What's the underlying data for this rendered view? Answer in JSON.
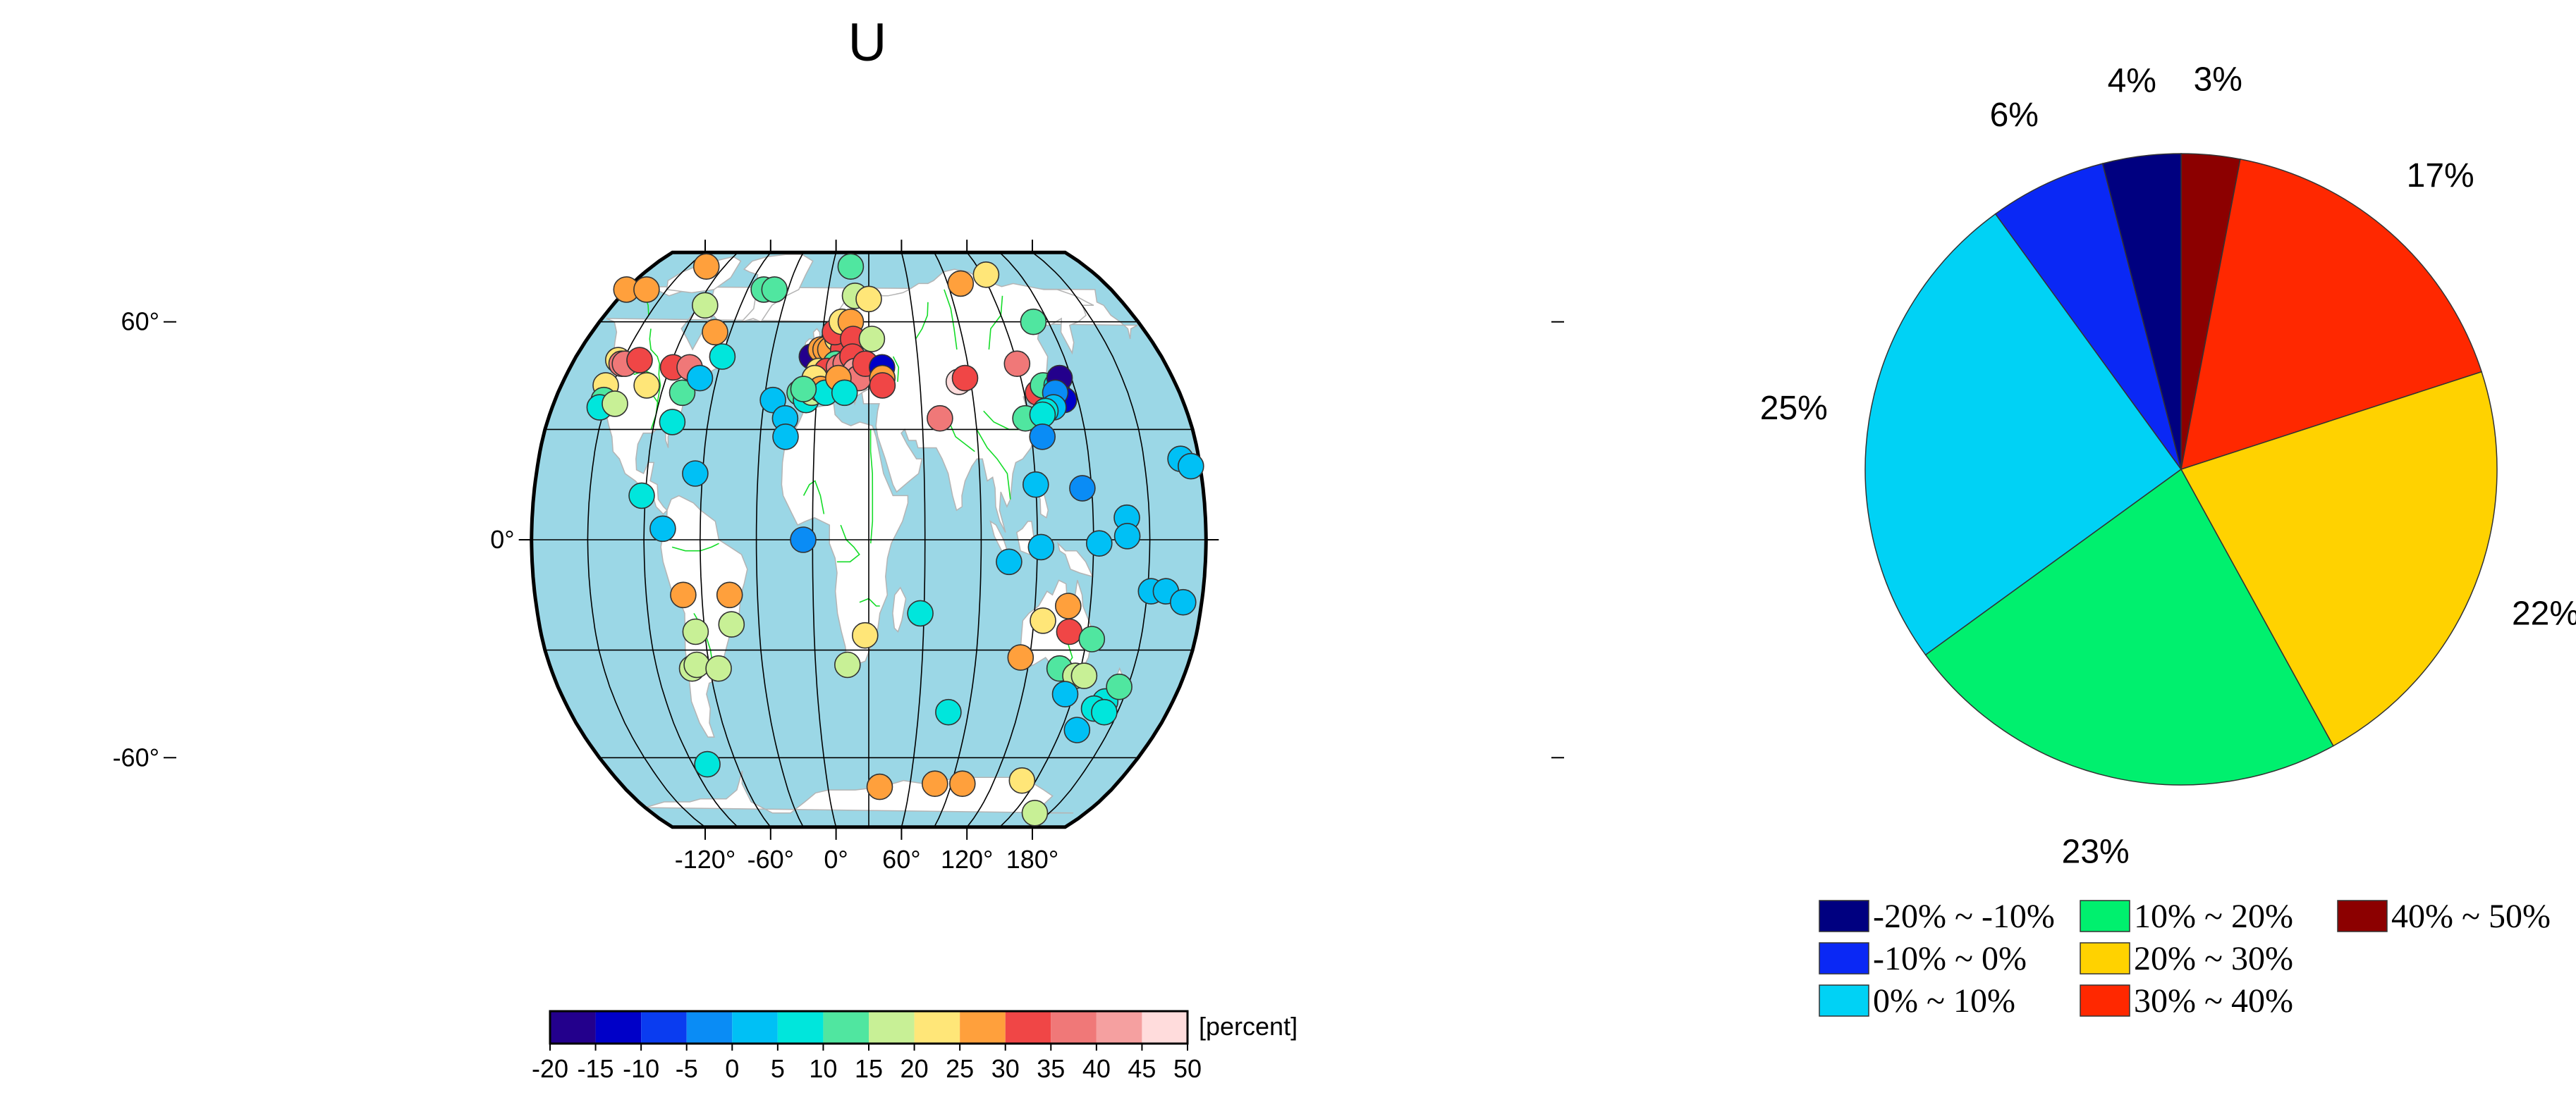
{
  "chart_data": [
    {
      "type": "map",
      "title": "U",
      "projection": "Robinson",
      "xticks": [
        "-120°",
        "-60°",
        "0°",
        "60°",
        "120°",
        "180°"
      ],
      "yticks": [
        "60°",
        "0°",
        "-60°"
      ],
      "colorbar": {
        "unit": "[percent]",
        "ticks": [
          "-20",
          "-15",
          "-10",
          "-5",
          "0",
          "5",
          "10",
          "15",
          "20",
          "25",
          "30",
          "35",
          "40",
          "45",
          "50"
        ],
        "bins": [
          {
            "from": -20,
            "to": -15,
            "color": "#23008c"
          },
          {
            "from": -15,
            "to": -10,
            "color": "#0000c8"
          },
          {
            "from": -10,
            "to": -5,
            "color": "#0a3cf0"
          },
          {
            "from": -5,
            "to": 0,
            "color": "#0a8cf5"
          },
          {
            "from": 0,
            "to": 5,
            "color": "#00c0f5"
          },
          {
            "from": 5,
            "to": 10,
            "color": "#00e6dc"
          },
          {
            "from": 10,
            "to": 15,
            "color": "#50e6a0"
          },
          {
            "from": 15,
            "to": 20,
            "color": "#c8f096"
          },
          {
            "from": 20,
            "to": 25,
            "color": "#ffe678"
          },
          {
            "from": 25,
            "to": 30,
            "color": "#ffa03c"
          },
          {
            "from": 30,
            "to": 35,
            "color": "#f04646"
          },
          {
            "from": 35,
            "to": 40,
            "color": "#f07878"
          },
          {
            "from": 40,
            "to": 45,
            "color": "#f5a0a0"
          },
          {
            "from": 45,
            "to": 50,
            "color": "#ffdcdc"
          }
        ]
      },
      "stations": [
        {
          "lon": -123,
          "lat": 49,
          "v": 22
        },
        {
          "lon": -120,
          "lat": 48,
          "v": 38
        },
        {
          "lon": -118,
          "lat": 48,
          "v": 35
        },
        {
          "lon": -110,
          "lat": 49,
          "v": 32
        },
        {
          "lon": -124,
          "lat": 42,
          "v": 22
        },
        {
          "lon": -122,
          "lat": 38,
          "v": 12
        },
        {
          "lon": -123,
          "lat": 36,
          "v": 5
        },
        {
          "lon": -115,
          "lat": 37,
          "v": 18
        },
        {
          "lon": -100,
          "lat": 42,
          "v": 22
        },
        {
          "lon": -88,
          "lat": 47,
          "v": 32
        },
        {
          "lon": -78,
          "lat": 47,
          "v": 38
        },
        {
          "lon": -78,
          "lat": 40,
          "v": 12
        },
        {
          "lon": -70,
          "lat": 44,
          "v": 0
        },
        {
          "lon": -60,
          "lat": 50,
          "v": 5
        },
        {
          "lon": -80,
          "lat": 32,
          "v": 5
        },
        {
          "lon": -64,
          "lat": 18,
          "v": 0
        },
        {
          "lon": -92,
          "lat": 12,
          "v": 8
        },
        {
          "lon": -80,
          "lat": 3,
          "v": 2
        },
        {
          "lon": -150,
          "lat": 70,
          "v": 25
        },
        {
          "lon": -135,
          "lat": 70,
          "v": 28
        },
        {
          "lon": -105,
          "lat": 78,
          "v": 27
        },
        {
          "lon": -85,
          "lat": 65,
          "v": 18
        },
        {
          "lon": -70,
          "lat": 57,
          "v": 28
        },
        {
          "lon": -48,
          "lat": 70,
          "v": 12
        },
        {
          "lon": -40,
          "lat": 70,
          "v": 10
        },
        {
          "lon": -25,
          "lat": 38,
          "v": 0
        },
        {
          "lon": -17,
          "lat": 33,
          "v": 0
        },
        {
          "lon": -16,
          "lat": 28,
          "v": 3
        },
        {
          "lon": -5,
          "lat": 0,
          "v": -3
        },
        {
          "lon": -178,
          "lat": -14,
          "v": 2
        },
        {
          "lon": -70,
          "lat": -15,
          "v": 28
        },
        {
          "lon": -45,
          "lat": -15,
          "v": 27
        },
        {
          "lon": -65,
          "lat": -25,
          "v": 18
        },
        {
          "lon": -45,
          "lat": -23,
          "v": 17
        },
        {
          "lon": -70,
          "lat": -35,
          "v": 15
        },
        {
          "lon": -67,
          "lat": -34,
          "v": 18
        },
        {
          "lon": -55,
          "lat": -35,
          "v": 15
        },
        {
          "lon": -80,
          "lat": -62,
          "v": 8
        },
        {
          "lon": -5,
          "lat": 50,
          "v": -18
        },
        {
          "lon": 0,
          "lat": 52,
          "v": 28
        },
        {
          "lon": 3,
          "lat": 52,
          "v": 27
        },
        {
          "lon": 6,
          "lat": 52,
          "v": 25
        },
        {
          "lon": 10,
          "lat": 55,
          "v": 22
        },
        {
          "lon": 14,
          "lat": 52,
          "v": 32
        },
        {
          "lon": 8,
          "lat": 57,
          "v": 30
        },
        {
          "lon": 12,
          "lat": 60,
          "v": 22
        },
        {
          "lon": 18,
          "lat": 60,
          "v": 27
        },
        {
          "lon": 20,
          "lat": 55,
          "v": 33
        },
        {
          "lon": 10,
          "lat": 48,
          "v": 12
        },
        {
          "lon": 0,
          "lat": 46,
          "v": 22
        },
        {
          "lon": 3,
          "lat": 44,
          "v": 27
        },
        {
          "lon": 5,
          "lat": 46,
          "v": 30
        },
        {
          "lon": -2,
          "lat": 44,
          "v": 23
        },
        {
          "lon": 12,
          "lat": 47,
          "v": 35
        },
        {
          "lon": 16,
          "lat": 48,
          "v": 38
        },
        {
          "lon": 20,
          "lat": 50,
          "v": 32
        },
        {
          "lon": 22,
          "lat": 46,
          "v": 42
        },
        {
          "lon": 24,
          "lat": 44,
          "v": 37
        },
        {
          "lon": 28,
          "lat": 48,
          "v": 33
        },
        {
          "lon": 32,
          "lat": 55,
          "v": 18
        },
        {
          "lon": -10,
          "lat": 40,
          "v": 12
        },
        {
          "lon": -6,
          "lat": 38,
          "v": 8
        },
        {
          "lon": -3,
          "lat": 40,
          "v": 17
        },
        {
          "lon": 2,
          "lat": 41,
          "v": 25
        },
        {
          "lon": 5,
          "lat": 40,
          "v": 7
        },
        {
          "lon": 12,
          "lat": 44,
          "v": 28
        },
        {
          "lon": 16,
          "lat": 40,
          "v": 8
        },
        {
          "lon": -8,
          "lat": 41,
          "v": 10
        },
        {
          "lon": 15,
          "lat": 78,
          "v": 12
        },
        {
          "lon": 20,
          "lat": 68,
          "v": 18
        },
        {
          "lon": 30,
          "lat": 67,
          "v": 22
        },
        {
          "lon": 38,
          "lat": 47,
          "v": -15
        },
        {
          "lon": 38,
          "lat": 44,
          "v": 27
        },
        {
          "lon": 38,
          "lat": 42,
          "v": 32
        },
        {
          "lon": 83,
          "lat": 43,
          "v": 45
        },
        {
          "lon": 87,
          "lat": 44,
          "v": 32
        },
        {
          "lon": 70,
          "lat": 33,
          "v": 38
        },
        {
          "lon": 100,
          "lat": 72,
          "v": 27
        },
        {
          "lon": 120,
          "lat": 48,
          "v": 38
        },
        {
          "lon": 123,
          "lat": 75,
          "v": 23
        },
        {
          "lon": 140,
          "lat": 60,
          "v": 12
        },
        {
          "lon": 128,
          "lat": 40,
          "v": 32
        },
        {
          "lon": 118,
          "lat": 33,
          "v": 12
        },
        {
          "lon": 132,
          "lat": 42,
          "v": 10
        },
        {
          "lon": 140,
          "lat": 42,
          "v": 5
        },
        {
          "lon": 143,
          "lat": 44,
          "v": -18
        },
        {
          "lon": 142,
          "lat": 38,
          "v": -15
        },
        {
          "lon": 138,
          "lat": 40,
          "v": -5
        },
        {
          "lon": 135,
          "lat": 36,
          "v": 2
        },
        {
          "lon": 130,
          "lat": 35,
          "v": 8
        },
        {
          "lon": 128,
          "lat": 34,
          "v": 5
        },
        {
          "lon": 126,
          "lat": 28,
          "v": -3
        },
        {
          "lon": 120,
          "lat": 15,
          "v": 2
        },
        {
          "lon": 145,
          "lat": 14,
          "v": -3
        },
        {
          "lon": 105,
          "lat": -6,
          "v": 2
        },
        {
          "lon": 122,
          "lat": -2,
          "v": 3
        },
        {
          "lon": 153,
          "lat": -1,
          "v": 2
        },
        {
          "lon": 168,
          "lat": 6,
          "v": 2
        },
        {
          "lon": 168,
          "lat": 1,
          "v": 1
        },
        {
          "lon": -160,
          "lat": 22,
          "v": 2
        },
        {
          "lon": -155,
          "lat": 20,
          "v": 3
        },
        {
          "lon": -170,
          "lat": -14,
          "v": 2
        },
        {
          "lon": -160,
          "lat": -17,
          "v": 3
        },
        {
          "lon": 28,
          "lat": -26,
          "v": 22
        },
        {
          "lon": 18,
          "lat": -34,
          "v": 18
        },
        {
          "lon": 58,
          "lat": -20,
          "v": 8
        },
        {
          "lon": 78,
          "lat": -47,
          "v": 6
        },
        {
          "lon": 138,
          "lat": -18,
          "v": 25
        },
        {
          "lon": 125,
          "lat": -22,
          "v": 22
        },
        {
          "lon": 140,
          "lat": -25,
          "v": 32
        },
        {
          "lon": 153,
          "lat": -27,
          "v": 12
        },
        {
          "lon": 115,
          "lat": -32,
          "v": 28
        },
        {
          "lon": 138,
          "lat": -35,
          "v": 12
        },
        {
          "lon": 148,
          "lat": -37,
          "v": 18
        },
        {
          "lon": 153,
          "lat": -37,
          "v": 15
        },
        {
          "lon": 145,
          "lat": -42,
          "v": 2
        },
        {
          "lon": 170,
          "lat": -44,
          "v": 8
        },
        {
          "lon": 175,
          "lat": -40,
          "v": 12
        },
        {
          "lon": 165,
          "lat": -46,
          "v": 5
        },
        {
          "lon": 172,
          "lat": -47,
          "v": 5
        },
        {
          "lon": 160,
          "lat": -52,
          "v": 0
        },
        {
          "lon": 38,
          "lat": -69,
          "v": 28
        },
        {
          "lon": 78,
          "lat": -68,
          "v": 28
        },
        {
          "lon": 98,
          "lat": -68,
          "v": 28
        },
        {
          "lon": 140,
          "lat": -67,
          "v": 23
        },
        {
          "lon": 168,
          "lat": -78,
          "v": 18
        }
      ]
    },
    {
      "type": "pie",
      "slices": [
        {
          "label": "4%",
          "value": 4,
          "color": "#000080",
          "legend": "-20% ~ -10%"
        },
        {
          "label": "6%",
          "value": 6,
          "color": "#0a28f5",
          "legend": "-10% ~ 0%"
        },
        {
          "label": "25%",
          "value": 25,
          "color": "#00d2f5",
          "legend": "0% ~ 10%"
        },
        {
          "label": "23%",
          "value": 23,
          "color": "#00f06e",
          "legend": "10% ~ 20%"
        },
        {
          "label": "22%",
          "value": 22,
          "color": "#ffd200",
          "legend": "20% ~ 30%"
        },
        {
          "label": "17%",
          "value": 17,
          "color": "#ff2800",
          "legend": "30% ~ 40%"
        },
        {
          "label": "3%",
          "value": 3,
          "color": "#8c0000",
          "legend": "40% ~ 50%"
        }
      ]
    }
  ]
}
